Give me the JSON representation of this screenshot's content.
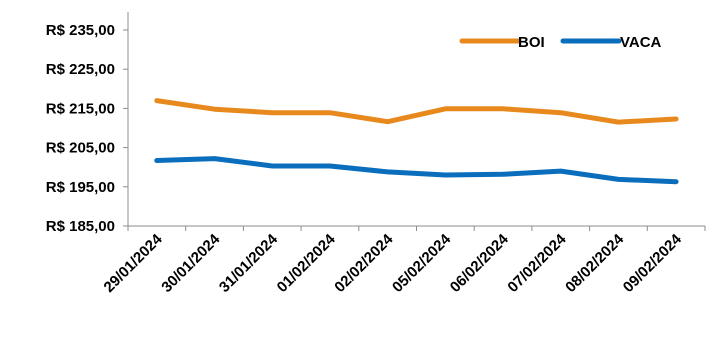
{
  "chart_data": {
    "type": "line",
    "categories": [
      "29/01/2024",
      "30/01/2024",
      "31/01/2024",
      "01/02/2024",
      "02/02/2024",
      "05/02/2024",
      "06/02/2024",
      "07/02/2024",
      "08/02/2024",
      "09/02/2024"
    ],
    "series": [
      {
        "name": "BOI",
        "color": "#E8891E",
        "values": [
          217.0,
          214.8,
          213.9,
          213.9,
          211.6,
          214.9,
          214.9,
          213.9,
          211.5,
          212.3
        ]
      },
      {
        "name": "VACA",
        "color": "#0A6EBD",
        "values": [
          201.7,
          202.2,
          200.3,
          200.3,
          198.8,
          198.0,
          198.2,
          199.0,
          196.9,
          196.3
        ]
      }
    ],
    "y_ticks": [
      "R$ 185,00",
      "R$ 195,00",
      "R$ 205,00",
      "R$ 215,00",
      "R$ 225,00",
      "R$ 235,00"
    ],
    "ylim": [
      185,
      235
    ],
    "legend_position": "top-right",
    "grid": false
  }
}
